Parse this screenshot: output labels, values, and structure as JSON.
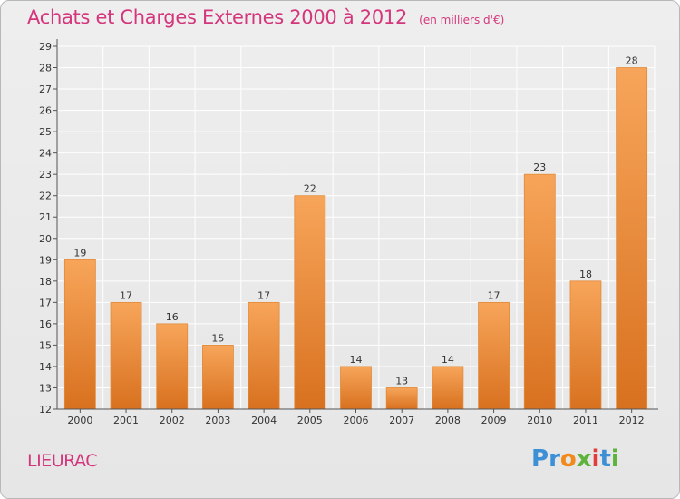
{
  "title": "Achats et Charges Externes 2000 à 2012",
  "unit_note": "(en milliers d'€)",
  "town": "LIEURAC",
  "logo": {
    "text": "Proxiti",
    "letters": [
      {
        "ch": "P",
        "color": "#3d8fd6"
      },
      {
        "ch": "r",
        "color": "#3d8fd6"
      },
      {
        "ch": "o",
        "color": "#f08a1c"
      },
      {
        "ch": "x",
        "color": "#5db33c"
      },
      {
        "ch": "i",
        "color": "#e23d3d"
      },
      {
        "ch": "t",
        "color": "#3d8fd6"
      },
      {
        "ch": "i",
        "color": "#5db33c"
      }
    ]
  },
  "colors": {
    "title": "#d4367c",
    "bar_top": "#f7a55a",
    "bar_bottom": "#d8711f",
    "bar_stroke": "#e08a3a",
    "grid": "#ffffff",
    "axis": "#555555"
  },
  "chart_data": {
    "type": "bar",
    "categories": [
      "2000",
      "2001",
      "2002",
      "2003",
      "2004",
      "2005",
      "2006",
      "2007",
      "2008",
      "2009",
      "2010",
      "2011",
      "2012"
    ],
    "values": [
      19,
      17,
      16,
      15,
      17,
      22,
      14,
      13,
      14,
      17,
      23,
      18,
      28
    ],
    "ylim": [
      12,
      29
    ],
    "yticks": [
      "12",
      "13",
      "14",
      "15",
      "16",
      "17",
      "18",
      "19",
      "20",
      "21",
      "22",
      "23",
      "24",
      "25",
      "26",
      "27",
      "28",
      "29"
    ],
    "grid": true,
    "xlabel": "",
    "ylabel": ""
  }
}
